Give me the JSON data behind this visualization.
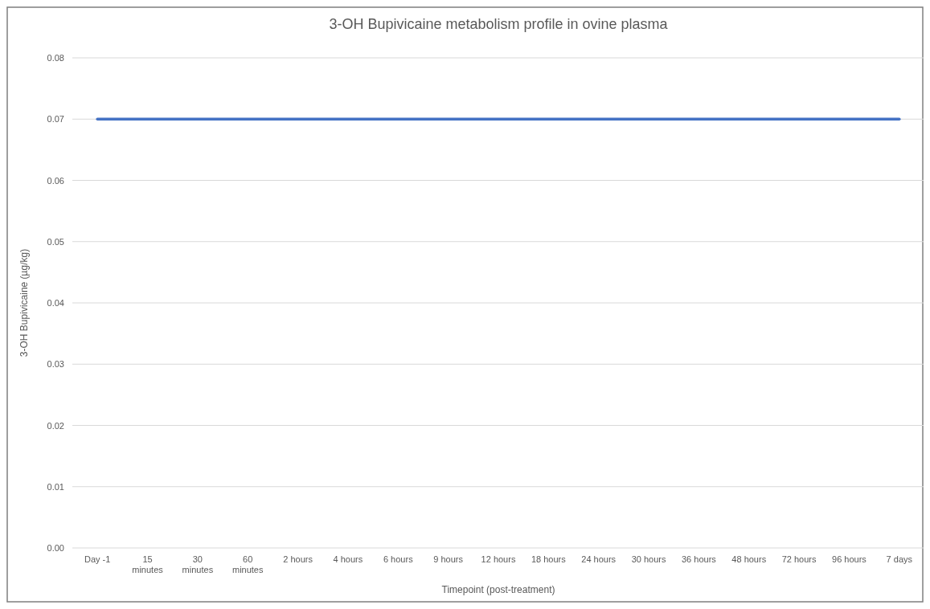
{
  "chart_data": {
    "type": "line",
    "title": "3-OH Bupivicaine metabolism profile in ovine plasma",
    "xlabel": "Timepoint (post-treatment)",
    "ylabel": "3-OH Bupivicaine (µg/kg)",
    "categories": [
      "Day -1",
      "15 minutes",
      "30 minutes",
      "60 minutes",
      "2 hours",
      "4 hours",
      "6 hours",
      "9 hours",
      "12 hours",
      "18 hours",
      "24 hours",
      "30 hours",
      "36 hours",
      "48 hours",
      "72 hours",
      "96 hours",
      "7 days"
    ],
    "series": [
      {
        "color": "#4472c4",
        "values": [
          0.07,
          0.07,
          0.07,
          0.07,
          0.07,
          0.07,
          0.07,
          0.07,
          0.07,
          0.07,
          0.07,
          0.07,
          0.07,
          0.07,
          0.07,
          0.07,
          0.07
        ]
      }
    ],
    "ylim": [
      0,
      0.08
    ],
    "yticks": [
      {
        "value": 0,
        "label": "0.00"
      },
      {
        "value": 0.01,
        "label": "0.01"
      },
      {
        "value": 0.02,
        "label": "0.02"
      },
      {
        "value": 0.03,
        "label": "0.03"
      },
      {
        "value": 0.04,
        "label": "0.04"
      },
      {
        "value": 0.05,
        "label": "0.05"
      },
      {
        "value": 0.06,
        "label": "0.06"
      },
      {
        "value": 0.07,
        "label": "0.07"
      },
      {
        "value": 0.08,
        "label": "0.08"
      }
    ],
    "grid": "y",
    "marker": "none",
    "line_style": "solid"
  }
}
